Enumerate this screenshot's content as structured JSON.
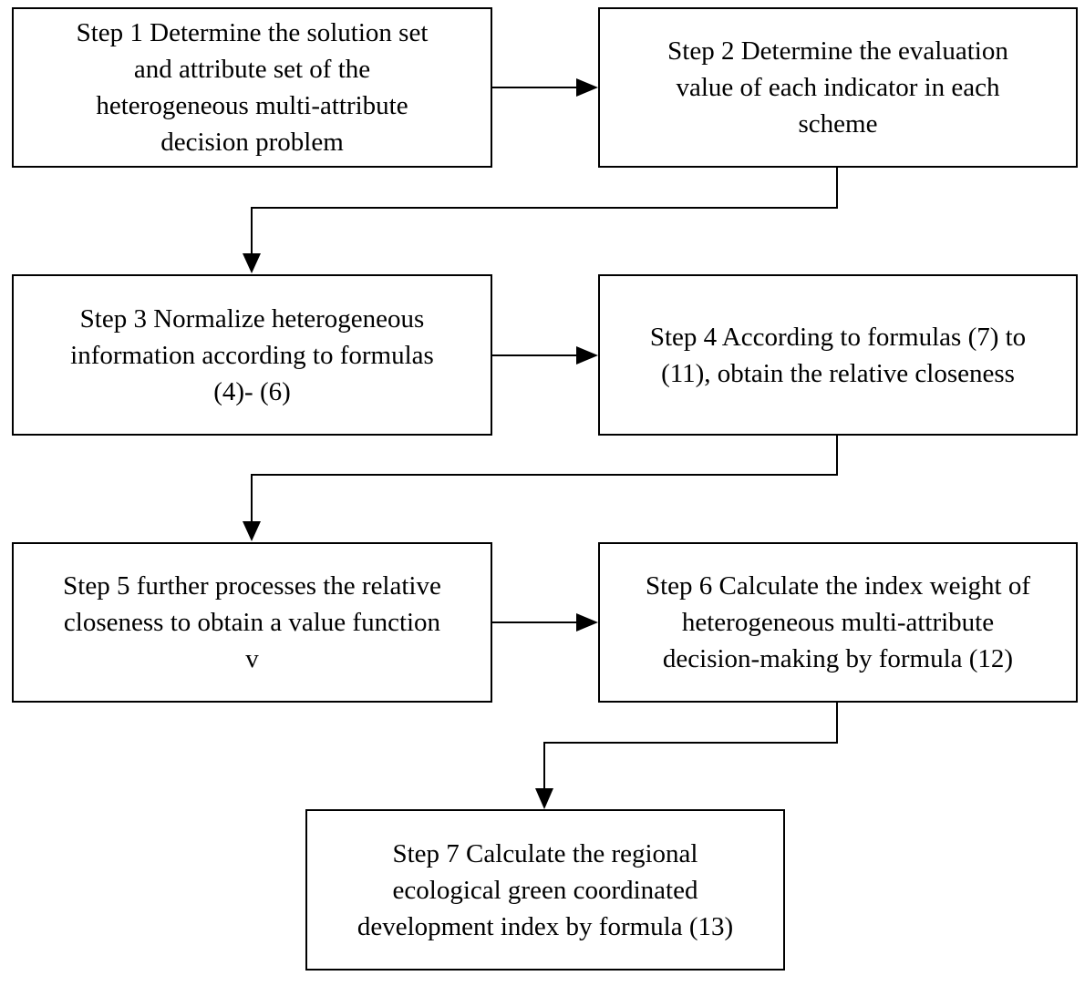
{
  "steps": [
    {
      "label": "Step 1 Determine the solution set\nand attribute set of the\nheterogeneous multi-attribute\ndecision problem"
    },
    {
      "label": "Step 2 Determine the evaluation\nvalue of each indicator in each\nscheme"
    },
    {
      "label": "Step 3 Normalize heterogeneous\ninformation according to formulas\n(4)- (6)"
    },
    {
      "label": "Step 4 According to formulas (7) to\n(11), obtain the relative closeness"
    },
    {
      "label": "Step 5 further processes the relative\ncloseness to obtain a value function\nv"
    },
    {
      "label": "Step 6 Calculate the index weight of\nheterogeneous multi-attribute\ndecision-making by formula (12)"
    },
    {
      "label": "Step 7 Calculate the regional\necological green coordinated\ndevelopment index by formula (13)"
    }
  ]
}
